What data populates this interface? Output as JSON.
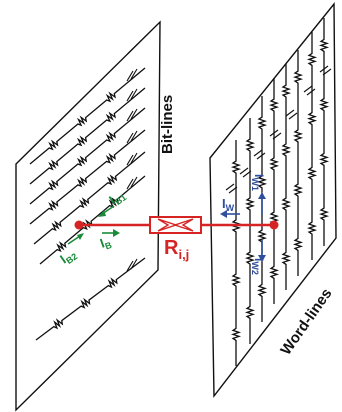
{
  "diagram": {
    "bit_lines_label": "Bit-lines",
    "word_lines_label": "Word-lines",
    "resistor_label": {
      "main": "R",
      "sub": "i,j"
    },
    "currents": {
      "IB1": {
        "main": "I",
        "sub": "B1"
      },
      "IB2": {
        "main": "I",
        "sub": "B2"
      },
      "IB": {
        "main": "I",
        "sub": "B"
      },
      "IW": {
        "main": "I",
        "sub": "W"
      },
      "IW1": {
        "main": "I",
        "sub": "W1"
      },
      "IW2": {
        "main": "I",
        "sub": "W2"
      }
    },
    "colors": {
      "wire_red": "#d62424",
      "bit_current_green": "#1a8a3a",
      "word_current_blue": "#2f4f9e",
      "lines": "#111111"
    }
  }
}
